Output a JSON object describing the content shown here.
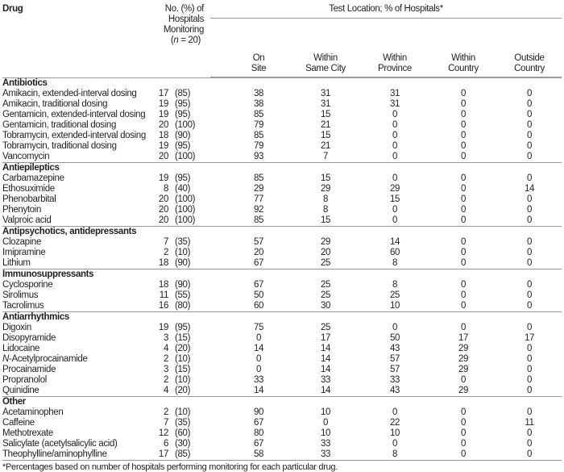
{
  "header": {
    "drug": "Drug",
    "monitoring": [
      "No. (%) of",
      "Hospitals",
      "Monitoring",
      "(n = 20)"
    ],
    "test_location": "Test Location; % of Hospitals*",
    "columns": [
      "On Site",
      "Within Same City",
      "Within Province",
      "Within Country",
      "Outside Country"
    ]
  },
  "groups": [
    {
      "name": "Antibiotics",
      "rows": [
        [
          "Amikacin, extended-interval dosing",
          "17",
          "(85)",
          "38",
          "31",
          "31",
          "0",
          "0"
        ],
        [
          "Amikacin, traditional dosing",
          "19",
          "(95)",
          "38",
          "31",
          "31",
          "0",
          "0"
        ],
        [
          "Gentamicin, extended-interval dosing",
          "19",
          "(95)",
          "85",
          "15",
          "0",
          "0",
          "0"
        ],
        [
          "Gentamicin, traditional dosing",
          "20",
          "(100)",
          "79",
          "21",
          "0",
          "0",
          "0"
        ],
        [
          "Tobramycin, extended-interval dosing",
          "18",
          "(90)",
          "85",
          "15",
          "0",
          "0",
          "0"
        ],
        [
          "Tobramycin, traditional dosing",
          "19",
          "(95)",
          "79",
          "21",
          "0",
          "0",
          "0"
        ],
        [
          "Vancomycin",
          "20",
          "(100)",
          "93",
          "7",
          "0",
          "0",
          "0"
        ]
      ]
    },
    {
      "name": "Antiepileptics",
      "rows": [
        [
          "Carbamazepine",
          "19",
          "(95)",
          "85",
          "15",
          "0",
          "0",
          "0"
        ],
        [
          "Ethosuximide",
          "8",
          "(40)",
          "29",
          "29",
          "29",
          "0",
          "14"
        ],
        [
          "Phenobarbital",
          "20",
          "(100)",
          "77",
          "8",
          "15",
          "0",
          "0"
        ],
        [
          "Phenytoin",
          "20",
          "(100)",
          "92",
          "8",
          "0",
          "0",
          "0"
        ],
        [
          "Valproic acid",
          "20",
          "(100)",
          "85",
          "15",
          "0",
          "0",
          "0"
        ]
      ]
    },
    {
      "name": "Antipsychotics, antidepressants",
      "rows": [
        [
          "Clozapine",
          "7",
          "(35)",
          "57",
          "29",
          "14",
          "0",
          "0"
        ],
        [
          "Imipramine",
          "2",
          "(10)",
          "20",
          "20",
          "60",
          "0",
          "0"
        ],
        [
          "Lithium",
          "18",
          "(90)",
          "67",
          "25",
          "8",
          "0",
          "0"
        ]
      ]
    },
    {
      "name": "Immunosuppressants",
      "rows": [
        [
          "Cyclosporine",
          "18",
          "(90)",
          "67",
          "25",
          "8",
          "0",
          "0"
        ],
        [
          "Sirolimus",
          "11",
          "(55)",
          "50",
          "25",
          "25",
          "0",
          "0"
        ],
        [
          "Tacrolimus",
          "16",
          "(80)",
          "60",
          "30",
          "10",
          "0",
          "0"
        ]
      ]
    },
    {
      "name": "Antiarrhythmics",
      "rows": [
        [
          "Digoxin",
          "19",
          "(95)",
          "75",
          "25",
          "0",
          "0",
          "0"
        ],
        [
          "Disopyramide",
          "3",
          "(15)",
          "0",
          "17",
          "50",
          "17",
          "17"
        ],
        [
          "Lidocaine",
          "4",
          "(20)",
          "14",
          "14",
          "43",
          "29",
          "0"
        ],
        [
          "N-Acetylprocainamide",
          "2",
          "(10)",
          "0",
          "14",
          "57",
          "29",
          "0"
        ],
        [
          "Procainamide",
          "3",
          "(15)",
          "0",
          "14",
          "57",
          "29",
          "0"
        ],
        [
          "Propranolol",
          "2",
          "(10)",
          "33",
          "33",
          "33",
          "0",
          "0"
        ],
        [
          "Quinidine",
          "4",
          "(20)",
          "14",
          "14",
          "43",
          "29",
          "0"
        ]
      ]
    },
    {
      "name": "Other",
      "rows": [
        [
          "Acetaminophen",
          "2",
          "(10)",
          "90",
          "10",
          "0",
          "0",
          "0"
        ],
        [
          "Caffeine",
          "7",
          "(35)",
          "67",
          "0",
          "22",
          "0",
          "11"
        ],
        [
          "Methotrexate",
          "12",
          "(60)",
          "80",
          "10",
          "10",
          "0",
          "0"
        ],
        [
          "Salicylate (acetylsalicylic acid)",
          "6",
          "(30)",
          "67",
          "33",
          "0",
          "0",
          "0"
        ],
        [
          "Theophylline/aminophylline",
          "17",
          "(85)",
          "58",
          "33",
          "8",
          "0",
          "0"
        ]
      ]
    }
  ],
  "footnote": "*Percentages based on number of hospitals performing monitoring for each particular drug."
}
